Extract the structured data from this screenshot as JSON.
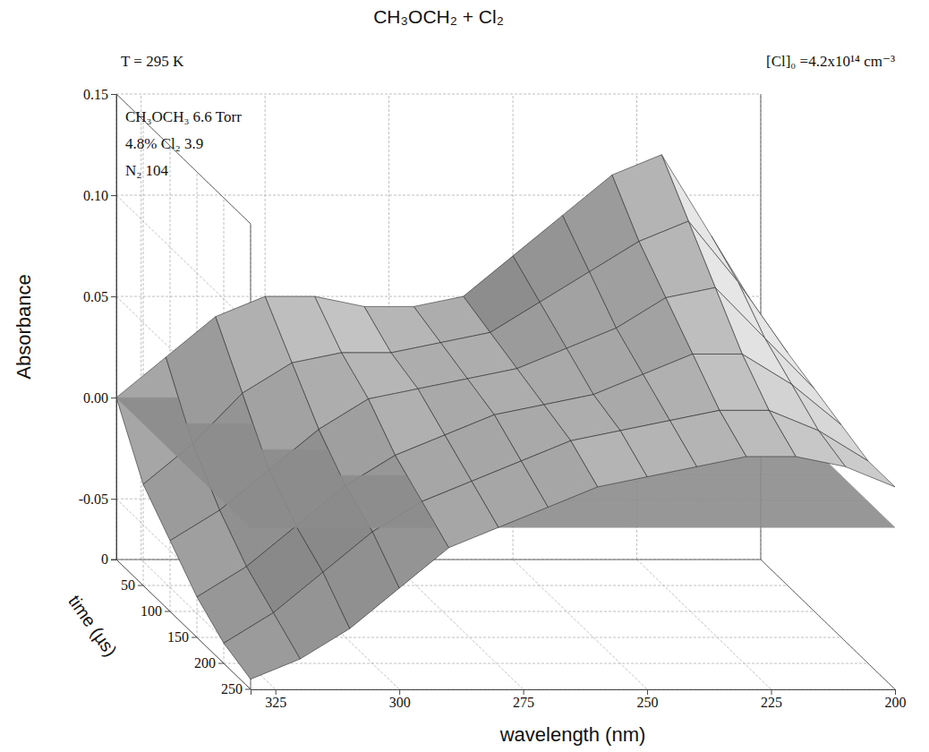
{
  "chart_data": {
    "type": "surface",
    "title": "CH₃OCH₂ + Cl₂",
    "annotations": [
      "T = 295 K",
      "CH₃OCH₃ 6.6 Torr",
      "4.8% Cl₂ 3.9",
      "N₂ 104",
      "[Cl]₀ =4.2x10¹⁴ cm⁻³"
    ],
    "x_label": "wavelength (nm)",
    "y_label": "time (µs)",
    "z_label": "Absorbance",
    "x": [
      200,
      210,
      220,
      230,
      240,
      250,
      260,
      270,
      280,
      290,
      300,
      310,
      320,
      330
    ],
    "y": [
      0,
      50,
      100,
      150,
      200,
      250
    ],
    "z": [
      [
        0.04,
        0.08,
        0.12,
        0.11,
        0.09,
        0.07,
        0.05,
        0.045,
        0.045,
        0.05,
        0.05,
        0.04,
        0.02,
        0.0
      ],
      [
        0.035,
        0.07,
        0.1,
        0.09,
        0.075,
        0.06,
        0.045,
        0.04,
        0.035,
        0.035,
        0.03,
        0.015,
        -0.01,
        -0.03
      ],
      [
        0.03,
        0.055,
        0.08,
        0.075,
        0.06,
        0.05,
        0.04,
        0.035,
        0.03,
        0.025,
        0.01,
        -0.01,
        -0.03,
        -0.045
      ],
      [
        0.025,
        0.045,
        0.06,
        0.06,
        0.05,
        0.04,
        0.035,
        0.03,
        0.02,
        0.01,
        -0.005,
        -0.025,
        -0.045,
        -0.06
      ],
      [
        0.02,
        0.035,
        0.045,
        0.045,
        0.04,
        0.035,
        0.03,
        0.02,
        0.01,
        0.0,
        -0.015,
        -0.035,
        -0.055,
        -0.07
      ],
      [
        0.02,
        0.03,
        0.035,
        0.035,
        0.03,
        0.025,
        0.02,
        0.01,
        0.0,
        -0.01,
        -0.03,
        -0.05,
        -0.065,
        -0.075
      ]
    ],
    "reference_plane": 0,
    "xlim": [
      330,
      200
    ],
    "ylim": [
      0,
      250
    ],
    "zlim": [
      -0.08,
      0.15
    ],
    "xticks": [
      200,
      225,
      250,
      275,
      300,
      325
    ],
    "yticks": [
      0,
      50,
      100,
      150,
      200,
      250
    ],
    "zticks": [
      {
        "value": -0.05,
        "label": "-0.05"
      },
      {
        "value": 0,
        "label": "0.00"
      },
      {
        "value": 0.05,
        "label": "0.05"
      },
      {
        "value": 0.1,
        "label": "0.10"
      },
      {
        "value": 0.15,
        "label": "0.15"
      }
    ],
    "color": "#b4b4b4",
    "grid": true
  }
}
